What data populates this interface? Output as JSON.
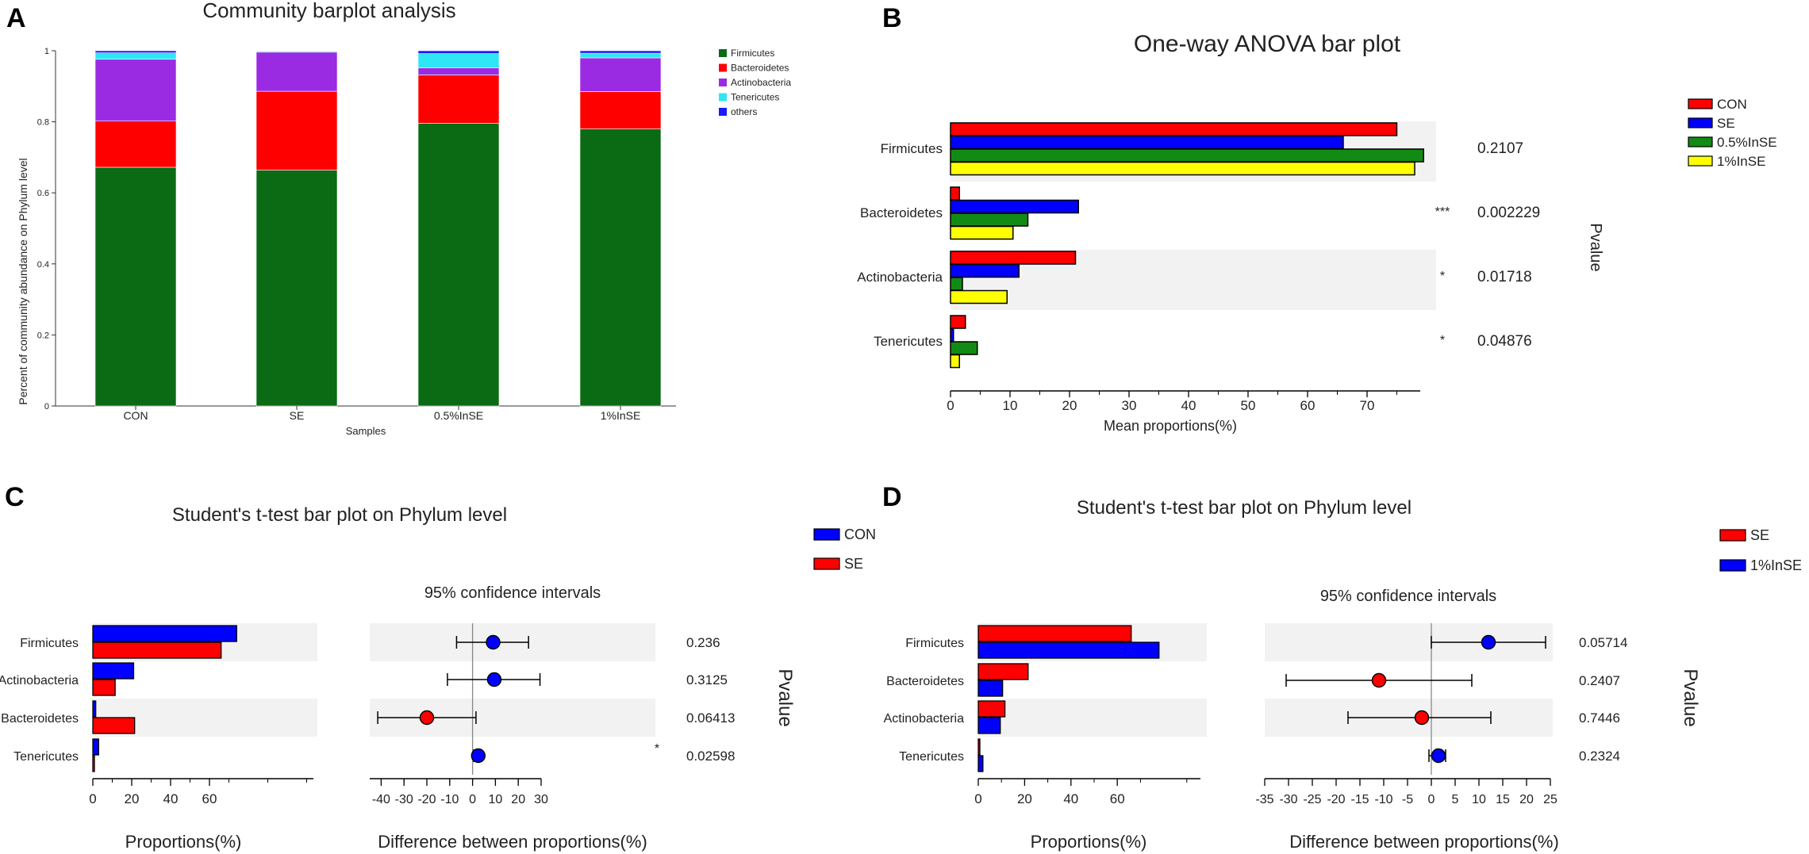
{
  "colors": {
    "firmicutes": "#0a6b14",
    "bacteroidetes": "#ff0000",
    "actinobacteria": "#9b2be3",
    "tenericutes": "#2ee6f5",
    "others": "#1a1aff",
    "con": "#ff0000",
    "se": "#0000ff",
    "ins05": "#138a13",
    "ins1": "#ffff00",
    "shade": "#f2f2f2",
    "star": "#f08080"
  },
  "chart_data": [
    {
      "panel": "A",
      "type": "bar",
      "stacked": true,
      "title": "Community barplot analysis",
      "xlabel": "Samples",
      "ylabel": "Percent of community abundance on Phylum level",
      "ylim": [
        0,
        1
      ],
      "yticks": [
        "0",
        "0.2",
        "0.4",
        "0.6",
        "0.8",
        "1"
      ],
      "categories": [
        "CON",
        "SE",
        "0.5%InSE",
        "1%InSE"
      ],
      "legend": [
        "Firmicutes",
        "Bacteroidetes",
        "Actinobacteria",
        "Tenericutes",
        "others"
      ],
      "series": [
        {
          "name": "Firmicutes",
          "values": [
            0.672,
            0.664,
            0.796,
            0.78
          ]
        },
        {
          "name": "Bacteroidetes",
          "values": [
            0.13,
            0.222,
            0.136,
            0.105
          ]
        },
        {
          "name": "Actinobacteria",
          "values": [
            0.174,
            0.11,
            0.02,
            0.095
          ]
        },
        {
          "name": "Tenericutes",
          "values": [
            0.018,
            0.003,
            0.04,
            0.013
          ]
        },
        {
          "name": "others",
          "values": [
            0.006,
            0.001,
            0.008,
            0.007
          ]
        }
      ]
    },
    {
      "panel": "B",
      "type": "bar",
      "orientation": "horizontal",
      "title": "One-way ANOVA bar plot",
      "xlabel": "Mean proportions(%)",
      "right_label": "Pvalue",
      "xlim": [
        0,
        80
      ],
      "xticks": [
        "0",
        "10",
        "20",
        "30",
        "40",
        "50",
        "60",
        "70"
      ],
      "categories": [
        "Firmicutes",
        "Bacteroidetes",
        "Actinobacteria",
        "Tenericutes"
      ],
      "series": [
        {
          "name": "CON",
          "values": [
            75,
            1.5,
            21,
            2.5
          ]
        },
        {
          "name": "SE",
          "values": [
            66,
            21.5,
            11.5,
            0.5
          ]
        },
        {
          "name": "0.5%InSE",
          "values": [
            79.5,
            13,
            2,
            4.5
          ]
        },
        {
          "name": "1%InSE",
          "values": [
            78,
            10.5,
            9.5,
            1.5
          ]
        }
      ],
      "pvalues": [
        "0.2107",
        "0.002229",
        "0.01718",
        "0.04876"
      ],
      "stars": [
        "",
        "***",
        "*",
        "*"
      ]
    },
    {
      "panel": "C",
      "type": "bar",
      "orientation": "horizontal",
      "title": "Student's t-test bar plot on Phylum level",
      "xlabel": "Proportions(%)",
      "xlim": [
        0,
        78
      ],
      "xticks": [
        "0",
        "20",
        "40",
        "60"
      ],
      "categories": [
        "Firmicutes",
        "Actinobacteria",
        "Bacteroidetes",
        "Tenericutes"
      ],
      "series": [
        {
          "name": "CON",
          "values": [
            74,
            21,
            1.5,
            3
          ]
        },
        {
          "name": "SE",
          "values": [
            66,
            11.5,
            21.5,
            0.5
          ]
        }
      ],
      "ci": {
        "title": "95% confidence intervals",
        "xlabel": "Difference between proportions(%)",
        "xlim": [
          -45,
          30
        ],
        "xticks": [
          "-40",
          "-30",
          "-20",
          "-10",
          "0",
          "10",
          "20",
          "30"
        ],
        "rows": [
          {
            "est": 9,
            "lo": -7,
            "hi": 24.5,
            "group": "CON"
          },
          {
            "est": 9.5,
            "lo": -11,
            "hi": 29.5,
            "group": "CON"
          },
          {
            "est": -20,
            "lo": -41.5,
            "hi": 1.5,
            "group": "SE"
          },
          {
            "est": 2.5,
            "lo": 0.5,
            "hi": 4,
            "group": "CON"
          }
        ]
      },
      "right_label": "Pvalue",
      "pvalues": [
        "0.236",
        "0.3125",
        "0.06413",
        "0.02598"
      ],
      "stars": [
        "",
        "",
        "",
        "*"
      ]
    },
    {
      "panel": "D",
      "type": "bar",
      "orientation": "horizontal",
      "title": "Student's t-test bar plot on Phylum level",
      "xlabel": "Proportions(%)",
      "xlim": [
        0,
        82
      ],
      "xticks": [
        "0",
        "20",
        "40",
        "60"
      ],
      "categories": [
        "Firmicutes",
        "Bacteroidetes",
        "Actinobacteria",
        "Tenericutes"
      ],
      "series": [
        {
          "name": "SE",
          "values": [
            66,
            21.5,
            11.5,
            0.5
          ]
        },
        {
          "name": "1%InSE",
          "values": [
            78,
            10.5,
            9.5,
            2
          ]
        }
      ],
      "ci": {
        "title": "95% confidence intervals",
        "xlabel": "Difference between proportions(%)",
        "xlim": [
          -35,
          25
        ],
        "xticks": [
          "-35",
          "-30",
          "-25",
          "-20",
          "-15",
          "-10",
          "-5",
          "0",
          "5",
          "10",
          "15",
          "20",
          "25"
        ],
        "rows": [
          {
            "est": 12,
            "lo": 0,
            "hi": 24,
            "group": "1%InSE"
          },
          {
            "est": -11,
            "lo": -30.5,
            "hi": 8.5,
            "group": "SE"
          },
          {
            "est": -2,
            "lo": -17.5,
            "hi": 12.5,
            "group": "SE"
          },
          {
            "est": 1.5,
            "lo": -0.5,
            "hi": 3,
            "group": "1%InSE"
          }
        ]
      },
      "right_label": "Pvalue",
      "pvalues": [
        "0.05714",
        "0.2407",
        "0.7446",
        "0.2324"
      ],
      "stars": [
        "",
        "",
        "",
        ""
      ]
    }
  ]
}
